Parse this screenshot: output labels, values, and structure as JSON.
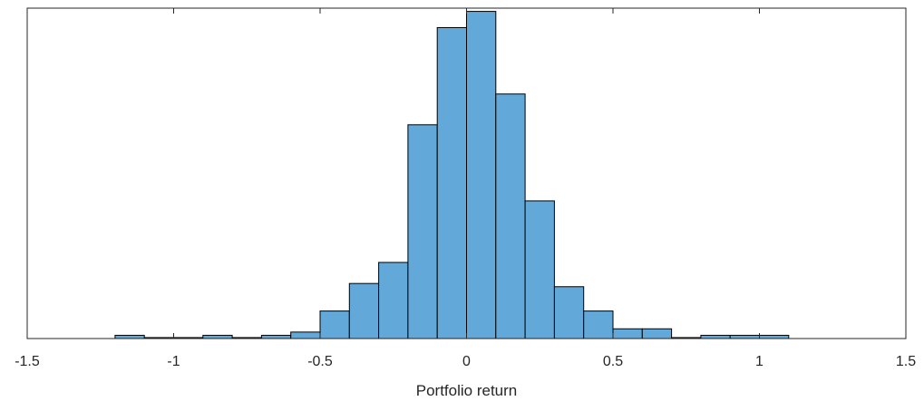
{
  "chart_data": {
    "type": "bar",
    "title": "",
    "xlabel": "Portfolio return",
    "ylabel": "",
    "xlim": [
      -1.5,
      1.5
    ],
    "ylim": [
      0,
      102
    ],
    "grid": false,
    "legend": "none",
    "bar_color": "#62a8d8",
    "edge_color": "#000000",
    "bin_width": 0.1,
    "x": [
      -1.15,
      -1.05,
      -0.95,
      -0.85,
      -0.75,
      -0.65,
      -0.55,
      -0.45,
      -0.35,
      -0.25,
      -0.15,
      -0.05,
      0.05,
      0.15,
      0.25,
      0.35,
      0.45,
      0.55,
      0.65,
      0.75,
      0.85,
      0.95,
      1.05
    ],
    "values": [
      1,
      0.3,
      0.3,
      1,
      0.3,
      1,
      2,
      8.5,
      17,
      23.5,
      66,
      96,
      101,
      75.5,
      42.5,
      16,
      8.5,
      3,
      3,
      0.3,
      1,
      1,
      1
    ],
    "xticks": [
      -1.5,
      -1,
      -0.5,
      0,
      0.5,
      1,
      1.5
    ],
    "xtick_labels": [
      "-1.5",
      "-1",
      "-0.5",
      "0",
      "0.5",
      "1",
      "1.5"
    ]
  }
}
